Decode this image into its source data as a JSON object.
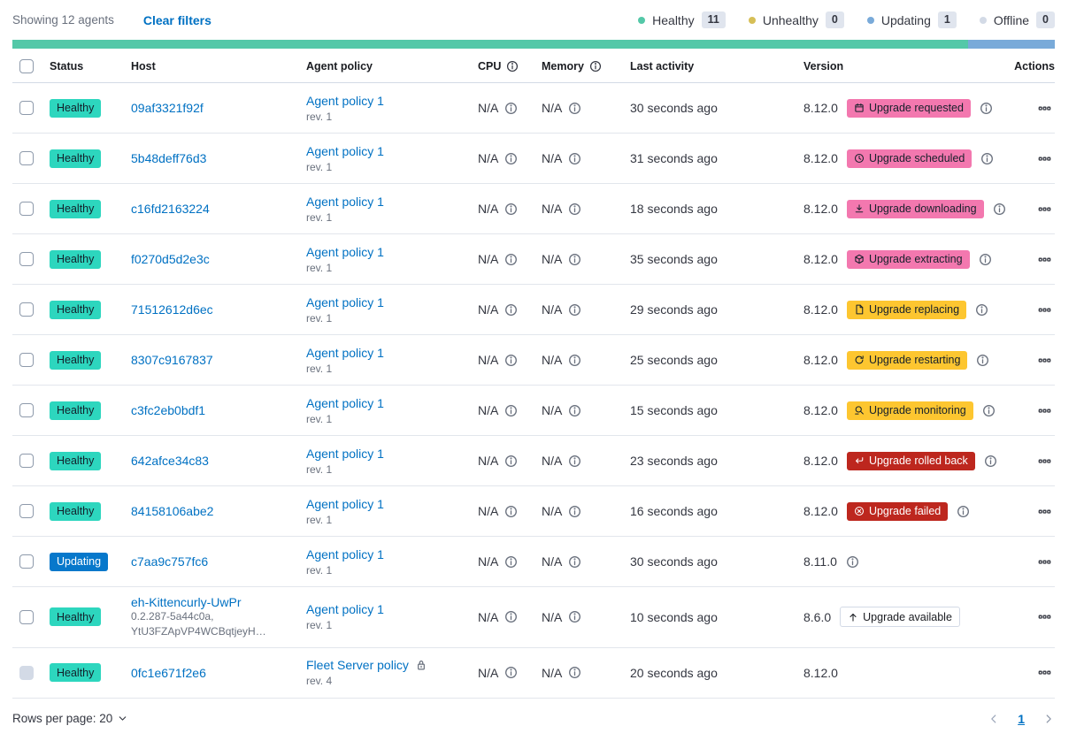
{
  "toolbar": {
    "showing": "Showing 12 agents",
    "clear_filters": "Clear filters",
    "legend": [
      {
        "label": "Healthy",
        "count": "11",
        "color": "#54C8A8"
      },
      {
        "label": "Unhealthy",
        "count": "0",
        "color": "#D6BF57"
      },
      {
        "label": "Updating",
        "count": "1",
        "color": "#79AAD9"
      },
      {
        "label": "Offline",
        "count": "0",
        "color": "#D3DAE6"
      }
    ]
  },
  "status_bar": {
    "segments": [
      {
        "color": "#54C8A8",
        "fraction": 0.9167
      },
      {
        "color": "#79AAD9",
        "fraction": 0.0833
      }
    ]
  },
  "table": {
    "columns": {
      "status": "Status",
      "host": "Host",
      "policy": "Agent policy",
      "cpu": "CPU",
      "memory": "Memory",
      "last_activity": "Last activity",
      "version": "Version",
      "actions": "Actions"
    },
    "rows": [
      {
        "status": "Healthy",
        "status_variant": "healthy",
        "host": "09af3321f92f",
        "host_sub": [],
        "policy": "Agent policy 1",
        "rev": "rev. 1",
        "policy_lock": false,
        "cpu": "N/A",
        "memory": "N/A",
        "last_activity": "30 seconds ago",
        "version": "8.12.0",
        "upgrade": {
          "label": "Upgrade requested",
          "variant": "pink",
          "icon": "calendar-icon"
        },
        "badge_info": true,
        "version_info": false,
        "checkbox_disabled": false
      },
      {
        "status": "Healthy",
        "status_variant": "healthy",
        "host": "5b48deff76d3",
        "host_sub": [],
        "policy": "Agent policy 1",
        "rev": "rev. 1",
        "policy_lock": false,
        "cpu": "N/A",
        "memory": "N/A",
        "last_activity": "31 seconds ago",
        "version": "8.12.0",
        "upgrade": {
          "label": "Upgrade scheduled",
          "variant": "pink",
          "icon": "clock-icon"
        },
        "badge_info": true,
        "version_info": false,
        "checkbox_disabled": false
      },
      {
        "status": "Healthy",
        "status_variant": "healthy",
        "host": "c16fd2163224",
        "host_sub": [],
        "policy": "Agent policy 1",
        "rev": "rev. 1",
        "policy_lock": false,
        "cpu": "N/A",
        "memory": "N/A",
        "last_activity": "18 seconds ago",
        "version": "8.12.0",
        "upgrade": {
          "label": "Upgrade downloading",
          "variant": "pink",
          "icon": "download-icon"
        },
        "badge_info": true,
        "version_info": false,
        "checkbox_disabled": false
      },
      {
        "status": "Healthy",
        "status_variant": "healthy",
        "host": "f0270d5d2e3c",
        "host_sub": [],
        "policy": "Agent policy 1",
        "rev": "rev. 1",
        "policy_lock": false,
        "cpu": "N/A",
        "memory": "N/A",
        "last_activity": "35 seconds ago",
        "version": "8.12.0",
        "upgrade": {
          "label": "Upgrade extracting",
          "variant": "pink",
          "icon": "package-icon"
        },
        "badge_info": true,
        "version_info": false,
        "checkbox_disabled": false
      },
      {
        "status": "Healthy",
        "status_variant": "healthy",
        "host": "71512612d6ec",
        "host_sub": [],
        "policy": "Agent policy 1",
        "rev": "rev. 1",
        "policy_lock": false,
        "cpu": "N/A",
        "memory": "N/A",
        "last_activity": "29 seconds ago",
        "version": "8.12.0",
        "upgrade": {
          "label": "Upgrade replacing",
          "variant": "yellow",
          "icon": "document-icon"
        },
        "badge_info": true,
        "version_info": false,
        "checkbox_disabled": false
      },
      {
        "status": "Healthy",
        "status_variant": "healthy",
        "host": "8307c9167837",
        "host_sub": [],
        "policy": "Agent policy 1",
        "rev": "rev. 1",
        "policy_lock": false,
        "cpu": "N/A",
        "memory": "N/A",
        "last_activity": "25 seconds ago",
        "version": "8.12.0",
        "upgrade": {
          "label": "Upgrade restarting",
          "variant": "yellow",
          "icon": "refresh-icon"
        },
        "badge_info": true,
        "version_info": false,
        "checkbox_disabled": false
      },
      {
        "status": "Healthy",
        "status_variant": "healthy",
        "host": "c3fc2eb0bdf1",
        "host_sub": [],
        "policy": "Agent policy 1",
        "rev": "rev. 1",
        "policy_lock": false,
        "cpu": "N/A",
        "memory": "N/A",
        "last_activity": "15 seconds ago",
        "version": "8.12.0",
        "upgrade": {
          "label": "Upgrade monitoring",
          "variant": "yellow",
          "icon": "inspect-icon"
        },
        "badge_info": true,
        "version_info": false,
        "checkbox_disabled": false
      },
      {
        "status": "Healthy",
        "status_variant": "healthy",
        "host": "642afce34c83",
        "host_sub": [],
        "policy": "Agent policy 1",
        "rev": "rev. 1",
        "policy_lock": false,
        "cpu": "N/A",
        "memory": "N/A",
        "last_activity": "23 seconds ago",
        "version": "8.12.0",
        "upgrade": {
          "label": "Upgrade rolled back",
          "variant": "red",
          "icon": "return-icon"
        },
        "badge_info": true,
        "version_info": false,
        "checkbox_disabled": false
      },
      {
        "status": "Healthy",
        "status_variant": "healthy",
        "host": "84158106abe2",
        "host_sub": [],
        "policy": "Agent policy 1",
        "rev": "rev. 1",
        "policy_lock": false,
        "cpu": "N/A",
        "memory": "N/A",
        "last_activity": "16 seconds ago",
        "version": "8.12.0",
        "upgrade": {
          "label": "Upgrade failed",
          "variant": "red",
          "icon": "error-icon"
        },
        "badge_info": true,
        "version_info": false,
        "checkbox_disabled": false
      },
      {
        "status": "Updating",
        "status_variant": "updating",
        "host": "c7aa9c757fc6",
        "host_sub": [],
        "policy": "Agent policy 1",
        "rev": "rev. 1",
        "policy_lock": false,
        "cpu": "N/A",
        "memory": "N/A",
        "last_activity": "30 seconds ago",
        "version": "8.11.0",
        "upgrade": null,
        "badge_info": false,
        "version_info": true,
        "checkbox_disabled": false
      },
      {
        "status": "Healthy",
        "status_variant": "healthy",
        "host": "eh-Kittencurly-UwPr",
        "host_sub": [
          "0.2.287-5a44c0a,",
          "YtU3FZApVP4WCBqtjeyH…"
        ],
        "policy": "Agent policy 1",
        "rev": "rev. 1",
        "policy_lock": false,
        "cpu": "N/A",
        "memory": "N/A",
        "last_activity": "10 seconds ago",
        "version": "8.6.0",
        "upgrade": {
          "label": "Upgrade available",
          "variant": "hollow",
          "icon": "arrow-up-icon"
        },
        "badge_info": false,
        "version_info": false,
        "checkbox_disabled": false
      },
      {
        "status": "Healthy",
        "status_variant": "healthy",
        "host": "0fc1e671f2e6",
        "host_sub": [],
        "policy": "Fleet Server policy",
        "rev": "rev. 4",
        "policy_lock": true,
        "cpu": "N/A",
        "memory": "N/A",
        "last_activity": "20 seconds ago",
        "version": "8.12.0",
        "upgrade": null,
        "badge_info": false,
        "version_info": false,
        "checkbox_disabled": true
      }
    ]
  },
  "footer": {
    "rows_per_page": "Rows per page: 20",
    "page": "1"
  },
  "colors": {
    "healthy_teal": "#2DD6BE",
    "updating_blue": "#0778CB",
    "accent_pink": "#F378AF",
    "warning_yellow": "#FDC630",
    "danger_red": "#BD271E",
    "link_blue": "#0071C3",
    "bar_teal": "#54C8A8",
    "bar_blue": "#79AAD9"
  }
}
